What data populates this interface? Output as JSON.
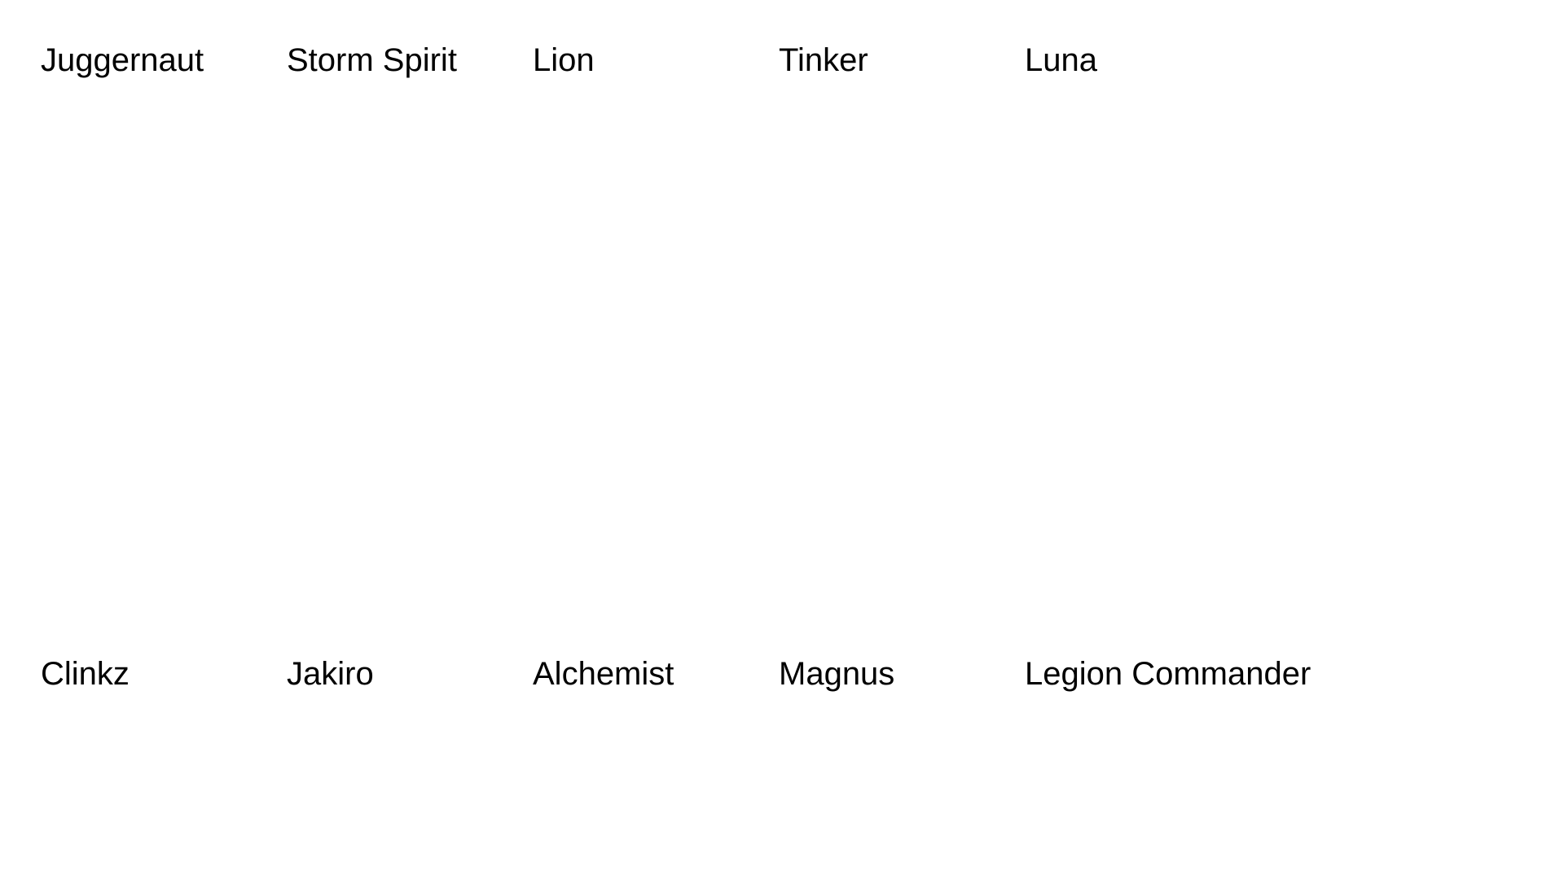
{
  "heroes": {
    "row1": [
      "Juggernaut",
      "Storm Spirit",
      "Lion",
      "Tinker",
      "Luna"
    ],
    "row2": [
      "Clinkz",
      "Jakiro",
      "Alchemist",
      "Magnus",
      "Legion Commander"
    ]
  }
}
